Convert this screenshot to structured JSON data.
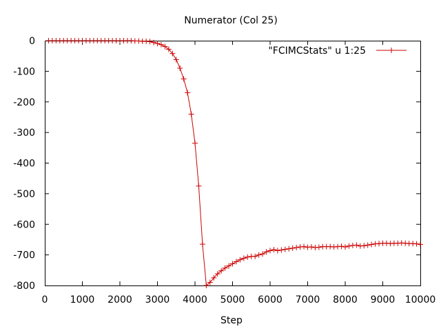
{
  "chart_data": {
    "type": "line",
    "title": "Numerator (Col 25)",
    "xlabel": "Step",
    "ylabel": "",
    "xlim": [
      0,
      10000
    ],
    "ylim": [
      -800,
      0
    ],
    "x_ticks": [
      "0",
      "1000",
      "2000",
      "3000",
      "4000",
      "5000",
      "6000",
      "7000",
      "8000",
      "9000",
      "10000"
    ],
    "y_ticks": [
      "0",
      "-100",
      "-200",
      "-300",
      "-400",
      "-500",
      "-600",
      "-700",
      "-800"
    ],
    "grid": false,
    "legend_position": "top-right",
    "series": [
      {
        "name": "\"FCIMCStats\" u 1:25",
        "color": "#cc0000",
        "marker": "plus",
        "x": [
          100,
          200,
          300,
          400,
          500,
          600,
          700,
          800,
          900,
          1000,
          1100,
          1200,
          1300,
          1400,
          1500,
          1600,
          1700,
          1800,
          1900,
          2000,
          2100,
          2200,
          2300,
          2400,
          2500,
          2600,
          2700,
          2800,
          2900,
          3000,
          3100,
          3200,
          3300,
          3400,
          3500,
          3600,
          3700,
          3800,
          3900,
          4000,
          4100,
          4200,
          4300,
          4400,
          4500,
          4600,
          4700,
          4800,
          4900,
          5000,
          5100,
          5200,
          5300,
          5400,
          5500,
          5600,
          5700,
          5800,
          5900,
          6000,
          6100,
          6200,
          6300,
          6400,
          6500,
          6600,
          6700,
          6800,
          6900,
          7000,
          7100,
          7200,
          7300,
          7400,
          7500,
          7600,
          7700,
          7800,
          7900,
          8000,
          8100,
          8200,
          8300,
          8400,
          8500,
          8600,
          8700,
          8800,
          8900,
          9000,
          9100,
          9200,
          9300,
          9400,
          9500,
          9600,
          9700,
          9800,
          9900,
          10000
        ],
        "y": [
          0,
          0,
          0,
          0,
          0,
          0,
          0,
          0,
          0,
          0,
          0,
          0,
          0,
          0,
          0,
          0,
          0,
          0,
          0,
          0,
          0,
          0,
          0,
          -1,
          -1,
          -2,
          -2,
          -3,
          -6,
          -9,
          -13,
          -19,
          -28,
          -42,
          -62,
          -90,
          -125,
          -170,
          -240,
          -335,
          -475,
          -665,
          -800,
          -790,
          -775,
          -762,
          -752,
          -743,
          -736,
          -729,
          -722,
          -716,
          -711,
          -707,
          -705,
          -705,
          -700,
          -697,
          -690,
          -686,
          -683,
          -686,
          -684,
          -682,
          -680,
          -678,
          -676,
          -674,
          -673,
          -675,
          -674,
          -676,
          -675,
          -673,
          -673,
          -673,
          -674,
          -673,
          -672,
          -674,
          -671,
          -669,
          -668,
          -671,
          -670,
          -668,
          -666,
          -664,
          -663,
          -662,
          -662,
          -663,
          -662,
          -662,
          -661,
          -662,
          -663,
          -663,
          -664,
          -666
        ]
      }
    ]
  }
}
